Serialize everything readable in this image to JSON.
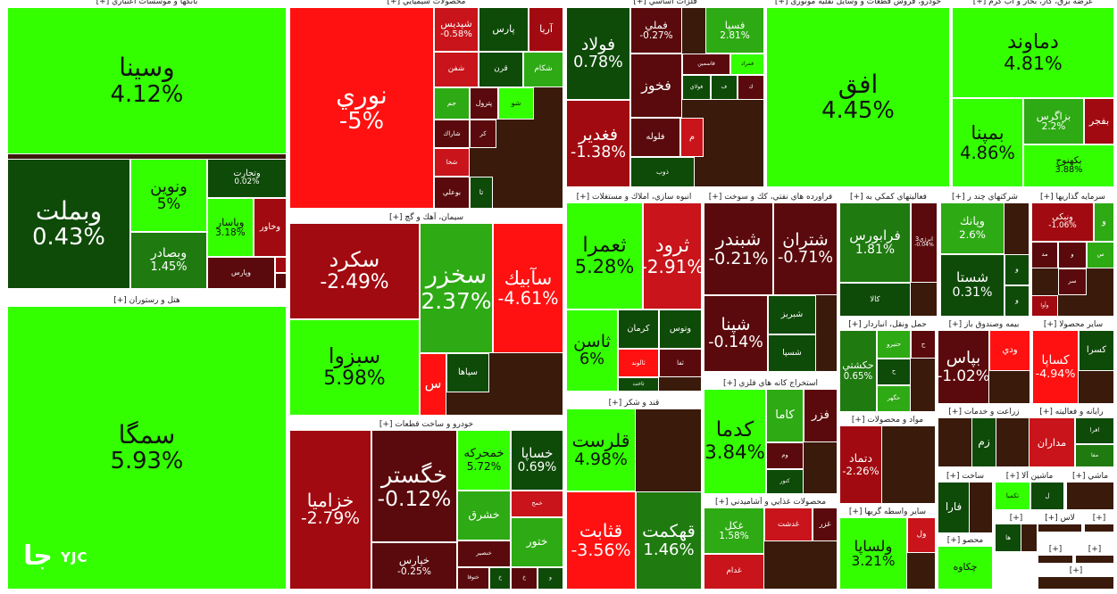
{
  "colors": {
    "strong_up": "#33ff00",
    "up": "#2eaa14",
    "up_mid": "#1f7a10",
    "up_dark": "#0e4a08",
    "down_strong": "#ff1111",
    "down": "#c8141a",
    "down_mid": "#a10a10",
    "down_dark": "#5a0a0c",
    "neutral_dark": "#2a1a08"
  },
  "logo": {
    "glyph": "جا",
    "text": "YJC"
  },
  "chart_data": {
    "type": "treemap",
    "sectors": [
      {
        "label": "بانکها و موسسات اعتباري [+]",
        "tiles": [
          {
            "name": "وسينا",
            "pct": "4.12%",
            "color": "strong_up"
          },
          {
            "name": "وبملت",
            "pct": "0.43%",
            "color": "up_dark"
          },
          {
            "name": "ونوين",
            "pct": "5%",
            "color": "strong_up"
          },
          {
            "name": "وبصادر",
            "pct": "1.45%",
            "color": "up_mid"
          },
          {
            "name": "وتجارت",
            "pct": "0.02%",
            "color": "up_dark"
          },
          {
            "name": "وپاسار",
            "pct": "3.18%",
            "color": "strong_up"
          },
          {
            "name": "وخاور",
            "pct": "",
            "color": "down_mid"
          },
          {
            "name": "وپارس",
            "pct": "",
            "color": "down_dark"
          },
          {
            "name": "",
            "pct": "",
            "color": "down_mid"
          },
          {
            "name": "",
            "pct": "",
            "color": "down_dark"
          }
        ]
      },
      {
        "label": "هتل و رستوران [+]",
        "tiles": [
          {
            "name": "سمگا",
            "pct": "5.93%",
            "color": "strong_up"
          }
        ]
      },
      {
        "label": "محصولات شيميايي [+]",
        "tiles": [
          {
            "name": "نوري",
            "pct": "-5%",
            "color": "down_strong"
          },
          {
            "name": "شپديس",
            "pct": "-0.58%",
            "color": "down"
          },
          {
            "name": "پارس",
            "pct": "",
            "color": "up_dark"
          },
          {
            "name": "آريا",
            "pct": "",
            "color": "down_mid"
          },
          {
            "name": "شفن",
            "pct": "",
            "color": "down"
          },
          {
            "name": "قرن",
            "pct": "",
            "color": "up_dark"
          },
          {
            "name": "شكام",
            "pct": "",
            "color": "up"
          },
          {
            "name": "جم",
            "pct": "",
            "color": "up"
          },
          {
            "name": "پترول",
            "pct": "",
            "color": "down_dark"
          },
          {
            "name": "شو",
            "pct": "",
            "color": "strong_up"
          },
          {
            "name": "شاراك",
            "pct": "",
            "color": "down_dark"
          },
          {
            "name": "كر",
            "pct": "",
            "color": "down_dark"
          },
          {
            "name": "شخا",
            "pct": "",
            "color": "down"
          },
          {
            "name": "بوعلي",
            "pct": "",
            "color": "down_dark"
          },
          {
            "name": "تا",
            "pct": "",
            "color": "up_dark"
          }
        ]
      },
      {
        "label": "سيمان، آهك و گچ [+]",
        "tiles": [
          {
            "name": "سكرد",
            "pct": "-2.49%",
            "color": "down_mid"
          },
          {
            "name": "سخزر",
            "pct": "2.37%",
            "color": "up"
          },
          {
            "name": "سآبيك",
            "pct": "-4.61%",
            "color": "down_strong"
          },
          {
            "name": "سبزوا",
            "pct": "5.98%",
            "color": "strong_up"
          },
          {
            "name": "س",
            "pct": "",
            "color": "down_strong"
          },
          {
            "name": "سپاها",
            "pct": "",
            "color": "up_dark"
          }
        ]
      },
      {
        "label": "خودرو و ساخت قطعات [+]",
        "tiles": [
          {
            "name": "خزاميا",
            "pct": "-2.79%",
            "color": "down_mid"
          },
          {
            "name": "خگستر",
            "pct": "-0.12%",
            "color": "down_dark"
          },
          {
            "name": "خپارس",
            "pct": "-0.25%",
            "color": "down_dark"
          },
          {
            "name": "خمحركه",
            "pct": "5.72%",
            "color": "strong_up"
          },
          {
            "name": "خساپا",
            "pct": "0.69%",
            "color": "up_dark"
          },
          {
            "name": "خمح",
            "pct": "",
            "color": "down"
          },
          {
            "name": "ختور",
            "pct": "",
            "color": "up"
          },
          {
            "name": "خشرق",
            "pct": "",
            "color": "up"
          },
          {
            "name": "خنصير",
            "pct": "",
            "color": "down_dark"
          },
          {
            "name": "ختوقا",
            "pct": "",
            "color": "down_dark"
          },
          {
            "name": "خ",
            "pct": "",
            "color": "up_dark"
          },
          {
            "name": "خ",
            "pct": "",
            "color": "down_dark"
          },
          {
            "name": "و",
            "pct": "",
            "color": "up_dark"
          }
        ]
      },
      {
        "label": "فلزات اساسي [+]",
        "tiles": [
          {
            "name": "فولاد",
            "pct": "0.78%",
            "color": "up_dark"
          },
          {
            "name": "فملي",
            "pct": "-0.27%",
            "color": "down_dark"
          },
          {
            "name": "فسپا",
            "pct": "2.81%",
            "color": "up"
          },
          {
            "name": "فخوز",
            "pct": "",
            "color": "down_dark"
          },
          {
            "name": "فاسمين",
            "pct": "",
            "color": "down_dark"
          },
          {
            "name": "فمراد",
            "pct": "",
            "color": "strong_up"
          },
          {
            "name": "فولاي",
            "pct": "",
            "color": "up_dark"
          },
          {
            "name": "ف",
            "pct": "",
            "color": "up_dark"
          },
          {
            "name": "ك",
            "pct": "",
            "color": "down_dark"
          },
          {
            "name": "فغدير",
            "pct": "-1.38%",
            "color": "down_mid"
          },
          {
            "name": "فلوله",
            "pct": "",
            "color": "down_dark"
          },
          {
            "name": "م",
            "pct": "",
            "color": "down"
          },
          {
            "name": "ذوب",
            "pct": "",
            "color": "up_dark"
          }
        ]
      },
      {
        "label": "خودرو، فروش قطعات و وسایل نقلیه موتوری [+]",
        "tiles": [
          {
            "name": "افق",
            "pct": "4.45%",
            "color": "strong_up"
          }
        ]
      },
      {
        "label": "عرضه برق، گاز، بخار و آب گرم [+]",
        "tiles": [
          {
            "name": "دماوند",
            "pct": "4.81%",
            "color": "strong_up"
          },
          {
            "name": "بمپنا",
            "pct": "4.86%",
            "color": "strong_up"
          },
          {
            "name": "بزاگرس",
            "pct": "2.2%",
            "color": "up"
          },
          {
            "name": "بفجر",
            "pct": "",
            "color": "down_mid"
          },
          {
            "name": "بكهنوج",
            "pct": "3.88%",
            "color": "strong_up"
          }
        ]
      },
      {
        "label": "انبوه سازي، املاك و مستغلات [+]",
        "tiles": [
          {
            "name": "ثعمرا",
            "pct": "5.28%",
            "color": "strong_up"
          },
          {
            "name": "ثرود",
            "pct": "-2.91%",
            "color": "down"
          },
          {
            "name": "ثاسن",
            "pct": "6%",
            "color": "strong_up"
          },
          {
            "name": "كرمان",
            "pct": "",
            "color": "up_dark"
          },
          {
            "name": "وتوس",
            "pct": "",
            "color": "up_dark"
          },
          {
            "name": "ثالوند",
            "pct": "",
            "color": "down_strong"
          },
          {
            "name": "ثفا",
            "pct": "",
            "color": "down_dark"
          },
          {
            "name": "ثاخت",
            "pct": "",
            "color": "up_dark"
          }
        ]
      },
      {
        "label": "قند و شكر [+]",
        "tiles": [
          {
            "name": "قلرست",
            "pct": "4.98%",
            "color": "strong_up"
          },
          {
            "name": "قثابت",
            "pct": "-3.56%",
            "color": "down_strong"
          },
          {
            "name": "قهكمت",
            "pct": "1.46%",
            "color": "up_mid"
          }
        ]
      },
      {
        "label": "فراورده هاي نفتي، كك و سوخت [+]",
        "tiles": [
          {
            "name": "شبندر",
            "pct": "-0.21%",
            "color": "down_dark"
          },
          {
            "name": "شتران",
            "pct": "-0.71%",
            "color": "down_dark"
          },
          {
            "name": "شپنا",
            "pct": "-0.14%",
            "color": "down_dark"
          },
          {
            "name": "شبريز",
            "pct": "",
            "color": "up_dark"
          },
          {
            "name": "شسپا",
            "pct": "",
            "color": "up_dark"
          }
        ]
      },
      {
        "label": "استخراج كانه هاي فلزي [+]",
        "tiles": [
          {
            "name": "كدما",
            "pct": "3.84%",
            "color": "strong_up"
          },
          {
            "name": "كاما",
            "pct": "",
            "color": "up"
          },
          {
            "name": "فزر",
            "pct": "",
            "color": "down_dark"
          },
          {
            "name": "وم",
            "pct": "",
            "color": "down_dark"
          },
          {
            "name": "كنور",
            "pct": "",
            "color": "up_dark"
          }
        ]
      },
      {
        "label": "محصولات غذايي و آشاميدني [+]",
        "tiles": [
          {
            "name": "غكل",
            "pct": "1.58%",
            "color": "up"
          },
          {
            "name": "غدشت",
            "pct": "",
            "color": "down"
          },
          {
            "name": "غزر",
            "pct": "",
            "color": "down_dark"
          },
          {
            "name": "غدام",
            "pct": "",
            "color": "down"
          }
        ]
      },
      {
        "label": "فعاليتهاي كمكي به [+]",
        "tiles": [
          {
            "name": "فرابورس",
            "pct": "1.81%",
            "color": "up_mid"
          },
          {
            "name": "انرژي3",
            "pct": "-0.04%",
            "color": "down_dark"
          },
          {
            "name": "كالا",
            "pct": "",
            "color": "up_dark"
          }
        ]
      },
      {
        "label": "شركتهاي چند ر [+]",
        "tiles": [
          {
            "name": "وپانك",
            "pct": "2.6%",
            "color": "up"
          },
          {
            "name": "شستا",
            "pct": "0.31%",
            "color": "up_dark"
          },
          {
            "name": "و",
            "pct": "",
            "color": "up_dark"
          },
          {
            "name": "و",
            "pct": "",
            "color": "up_dark"
          }
        ]
      },
      {
        "label": "سرمايه گذاريها [+]",
        "tiles": [
          {
            "name": "ونيكي",
            "pct": "-1.06%",
            "color": "down_mid"
          },
          {
            "name": "و",
            "pct": "",
            "color": "up"
          },
          {
            "name": "مد",
            "pct": "",
            "color": "down_dark"
          },
          {
            "name": "و",
            "pct": "",
            "color": "down_dark"
          },
          {
            "name": "س",
            "pct": "",
            "color": "up"
          },
          {
            "name": "سر",
            "pct": "",
            "color": "down_dark"
          },
          {
            "name": "وآوا",
            "pct": "",
            "color": "down_mid"
          }
        ]
      },
      {
        "label": "حمل ونقل، انباردار [+]",
        "tiles": [
          {
            "name": "حكشتي",
            "pct": "0.65%",
            "color": "up_mid"
          },
          {
            "name": "حتيرو",
            "pct": "",
            "color": "up"
          },
          {
            "name": "ح",
            "pct": "",
            "color": "down_dark"
          },
          {
            "name": "ح",
            "pct": "",
            "color": "up_dark"
          },
          {
            "name": "حگهر",
            "pct": "",
            "color": "up"
          }
        ]
      },
      {
        "label": "بيمه وصندوق باز [+]",
        "tiles": [
          {
            "name": "بپاس",
            "pct": "-1.02%",
            "color": "down_dark"
          },
          {
            "name": "ودي",
            "pct": "",
            "color": "down_strong"
          }
        ]
      },
      {
        "label": "ساير محصولا [+]",
        "tiles": [
          {
            "name": "كساپا",
            "pct": "-4.94%",
            "color": "down_strong"
          },
          {
            "name": "كسرا",
            "pct": "",
            "color": "up_dark"
          }
        ]
      },
      {
        "label": "مواد و محصولات [+]",
        "tiles": [
          {
            "name": "دتماد",
            "pct": "-2.26%",
            "color": "down_mid"
          }
        ]
      },
      {
        "label": "زراعت و خدمات [+]",
        "tiles": [
          {
            "name": "زم",
            "pct": "",
            "color": "up_dark"
          }
        ]
      },
      {
        "label": "رايانه و فعاليته [+]",
        "tiles": [
          {
            "name": "مداران",
            "pct": "",
            "color": "down"
          },
          {
            "name": "افرا",
            "pct": "",
            "color": "up_dark"
          },
          {
            "name": "مفا",
            "pct": "",
            "color": "up_mid"
          }
        ]
      },
      {
        "label": "ساير واسطه گريها [+]",
        "tiles": [
          {
            "name": "ولساپا",
            "pct": "3.21%",
            "color": "strong_up"
          },
          {
            "name": "ول",
            "pct": "",
            "color": "down"
          }
        ]
      },
      {
        "label": "ساخت [+]",
        "tiles": [
          {
            "name": "فارا",
            "pct": "",
            "color": "up_dark"
          }
        ]
      },
      {
        "label": "ماشين آلا [+]",
        "tiles": [
          {
            "name": "تكمبا",
            "pct": "",
            "color": "strong_up"
          },
          {
            "name": "ل",
            "pct": "",
            "color": "up_dark"
          }
        ]
      },
      {
        "label": "ماشي [+]",
        "tiles": []
      },
      {
        "label": "محصو [+]",
        "tiles": [
          {
            "name": "چكاوه",
            "pct": "",
            "color": "strong_up"
          }
        ]
      },
      {
        "label": "[+]",
        "tiles": [
          {
            "name": "ها",
            "pct": "",
            "color": "up_dark"
          }
        ]
      },
      {
        "label": "لاس [+]",
        "tiles": []
      },
      {
        "label": "[+]",
        "tiles": []
      },
      {
        "label": "[+]",
        "tiles": []
      },
      {
        "label": "[+]",
        "tiles": []
      },
      {
        "label": "[+]",
        "tiles": []
      },
      {
        "label": "[+]",
        "tiles": []
      }
    ]
  }
}
